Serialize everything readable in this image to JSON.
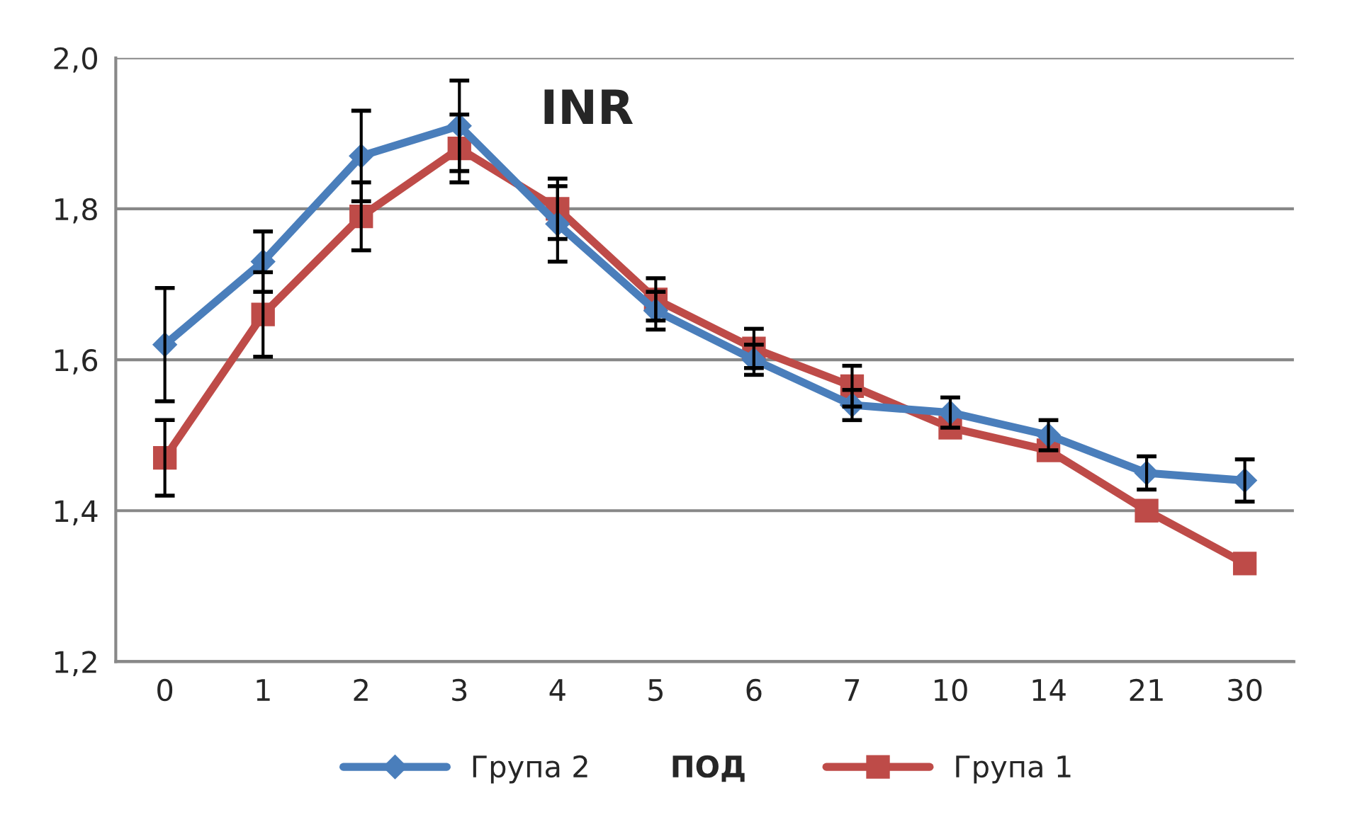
{
  "chart_data": {
    "type": "line",
    "title": "INR",
    "xlabel": "ПОД",
    "categories": [
      "0",
      "1",
      "2",
      "3",
      "4",
      "5",
      "6",
      "7",
      "10",
      "14",
      "21",
      "30"
    ],
    "series": [
      {
        "name": "Група 2",
        "color": "#4a7ebb",
        "marker": "diamond",
        "values": [
          1.62,
          1.73,
          1.87,
          1.91,
          1.78,
          1.665,
          1.6,
          1.54,
          1.53,
          1.5,
          1.45,
          1.44
        ],
        "errors": [
          0.075,
          0.04,
          0.06,
          0.06,
          0.05,
          0.025,
          0.02,
          0.02,
          0.02,
          0.02,
          0.022,
          0.028
        ]
      },
      {
        "name": "Група 1",
        "color": "#be4b48",
        "marker": "square",
        "values": [
          1.47,
          1.66,
          1.79,
          1.88,
          1.8,
          1.68,
          1.615,
          1.565,
          1.51,
          1.48,
          1.4,
          1.33
        ],
        "errors": [
          0.05,
          0.056,
          0.045,
          0.045,
          0.04,
          0.028,
          0.026,
          0.027,
          null,
          null,
          null,
          null
        ]
      }
    ],
    "ylim": [
      1.2,
      2.0
    ],
    "yticks": [
      {
        "value": 1.2,
        "label": "1,2"
      },
      {
        "value": 1.4,
        "label": "1,4"
      },
      {
        "value": 1.6,
        "label": "1,6"
      },
      {
        "value": 1.8,
        "label": "1,8"
      },
      {
        "value": 2.0,
        "label": "2,0"
      }
    ],
    "grid": "y",
    "legend": "bottom",
    "line_style": "solid"
  }
}
